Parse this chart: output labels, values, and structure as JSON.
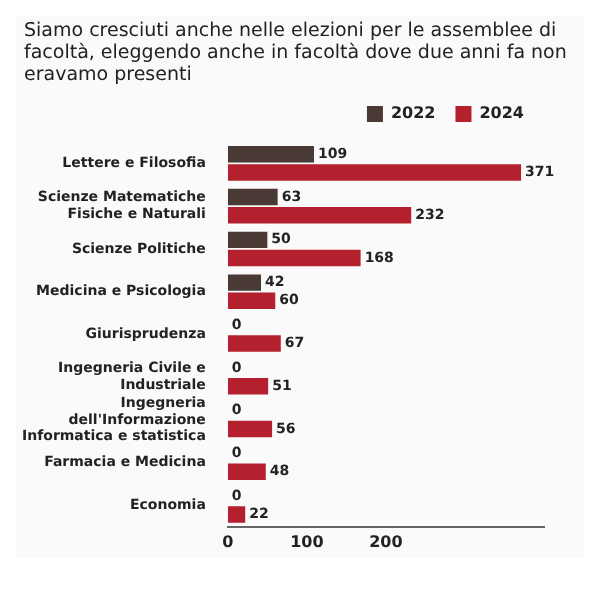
{
  "chart_data": {
    "type": "bar",
    "orientation": "horizontal",
    "title": "Siamo cresciuti anche nelle elezioni per le assemblee di facoltà, eleggendo anche in facoltà dove due anni fa non eravamo presenti",
    "categories": [
      "Lettere e Filosofia",
      "Scienze Matematiche Fisiche e Naturali",
      "Scienze Politiche",
      "Medicina e Psicologia",
      "Giurisprudenza",
      "Ingegneria Civile e Industriale",
      "Ingegneria dell'Informazione Informatica e statistica",
      "Farmacia e Medicina",
      "Economia"
    ],
    "series": [
      {
        "name": "2022",
        "color": "#4a3a36",
        "values": [
          109,
          63,
          50,
          42,
          0,
          0,
          0,
          0,
          0
        ]
      },
      {
        "name": "2024",
        "color": "#b5202e",
        "values": [
          371,
          232,
          168,
          60,
          67,
          51,
          56,
          48,
          22
        ]
      }
    ],
    "xlim": [
      0,
      400
    ],
    "xticks": [
      0,
      100,
      200
    ],
    "data_labels": true,
    "legend": "top right",
    "grid": false
  }
}
